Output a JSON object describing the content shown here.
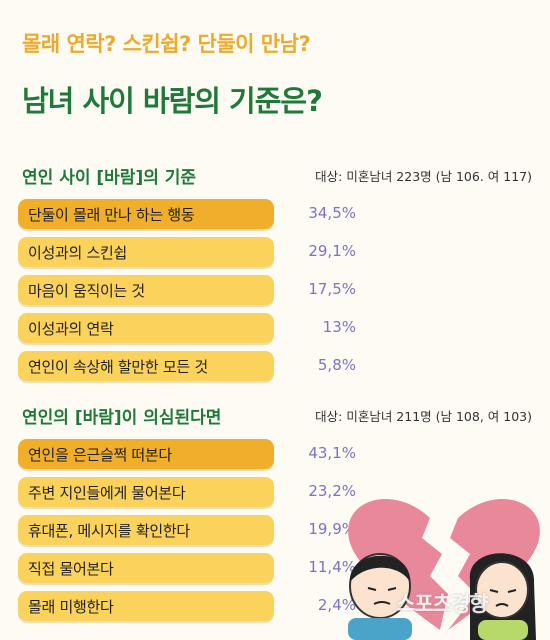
{
  "header": {
    "subtitle": "몰래 연락? 스킨쉽? 단둘이 만남?",
    "title": "남녀 사이 바람의 기준은?"
  },
  "chart_data": [
    {
      "type": "bar",
      "title": "연인 사이 [바람]의 기준",
      "note": "대상: 미혼남녀 223명 (남 106. 여 117)",
      "categories": [
        "단둘이 몰래 만나 하는 행동",
        "이성과의 스킨쉽",
        "마음이 움직이는 것",
        "이성과의 연락",
        "연인이 속상해 할만한 모든 것"
      ],
      "values": [
        34.5,
        29.1,
        17.5,
        13,
        5.8
      ],
      "value_labels": [
        "34,5%",
        "29,1%",
        "17,5%",
        "13%",
        "5,8%"
      ],
      "unit": "%",
      "highlight_color": "#f0ae2a",
      "bar_color": "#fbd25c",
      "value_color": "#7e72c8"
    },
    {
      "type": "bar",
      "title": "연인의 [바람]이 의심된다면",
      "note": "대상: 미혼남녀 211명 (남 108, 여 103)",
      "categories": [
        "연인을 은근슬쩍 떠본다",
        "주변 지인들에게 물어본다",
        "휴대폰, 메시지를 확인한다",
        "직접 물어본다",
        "몰래 미행한다"
      ],
      "values": [
        43.1,
        23.2,
        19.9,
        11.4,
        2.4
      ],
      "value_labels": [
        "43,1%",
        "23,2%",
        "19,9%",
        "11,4%",
        "2,4%"
      ],
      "unit": "%",
      "highlight_color": "#f0ae2a",
      "bar_color": "#fbd25c",
      "value_color": "#7e72c8"
    }
  ],
  "illustration": {
    "icon": "broken-heart-couple-illustration",
    "heart_color": "#e8889a",
    "watermark": "스포츠경향"
  }
}
